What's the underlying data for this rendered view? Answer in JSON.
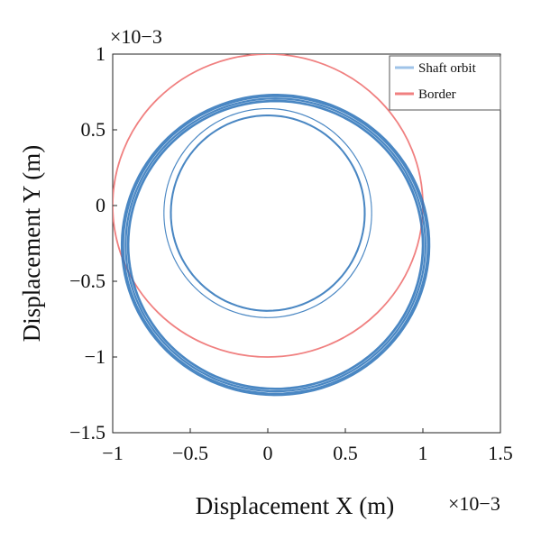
{
  "chart_data": {
    "type": "line",
    "title": "",
    "xlabel": "Displacement X (m)",
    "ylabel": "Displacement Y (m)",
    "x_multiplier": "×10−3",
    "y_multiplier": "×10−3",
    "xlim": [
      -1,
      1.5
    ],
    "ylim": [
      -1.5,
      1
    ],
    "x_ticks": [
      {
        "value": -1,
        "label": "−1"
      },
      {
        "value": -0.5,
        "label": "−0.5"
      },
      {
        "value": 0,
        "label": "0"
      },
      {
        "value": 0.5,
        "label": "0.5"
      },
      {
        "value": 1,
        "label": "1"
      },
      {
        "value": 1.5,
        "label": "1.5"
      }
    ],
    "y_ticks": [
      {
        "value": 1,
        "label": "1"
      },
      {
        "value": 0.5,
        "label": "0.5"
      },
      {
        "value": 0,
        "label": "0"
      },
      {
        "value": -0.5,
        "label": "−0.5"
      },
      {
        "value": -1,
        "label": "−1"
      },
      {
        "value": -1.5,
        "label": "−1.5"
      }
    ],
    "grid": false,
    "legend_position": "top-right",
    "series": [
      {
        "name": "Shaft orbit",
        "color": "#2a72b8",
        "shape": "spiral orbit loops",
        "outer_loop": {
          "center": [
            0.05,
            -0.26
          ],
          "radius_x": 0.97,
          "radius_y": 0.97
        },
        "inner_loop": {
          "center": [
            0.0,
            -0.05
          ],
          "radius_x": 0.64,
          "radius_y": 0.66
        }
      },
      {
        "name": "Border",
        "color": "#f08080",
        "shape": "circle",
        "center": [
          0,
          0
        ],
        "radius": 1
      }
    ]
  }
}
